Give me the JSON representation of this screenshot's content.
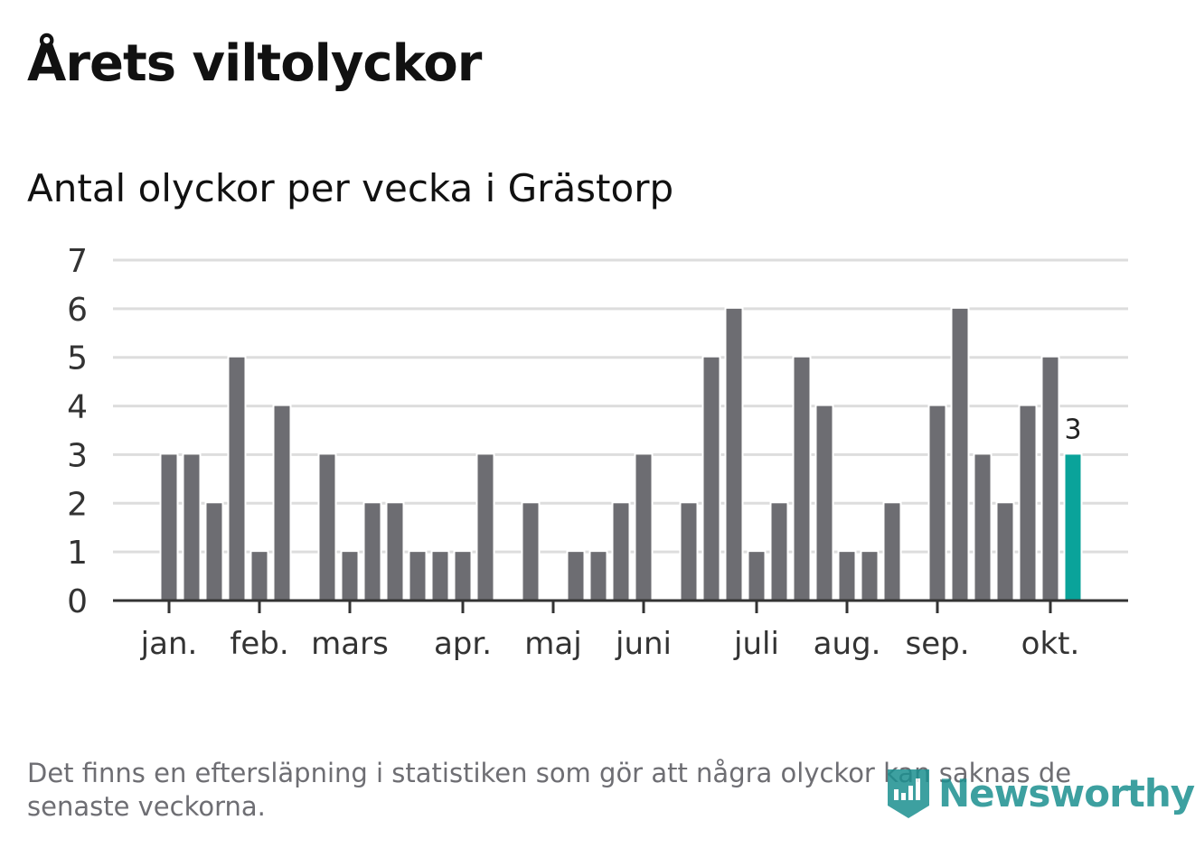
{
  "title": "Årets viltolyckor",
  "subtitle": "Antal olyckor per vecka i Grästorp",
  "note": "Det finns en eftersläpning i statistiken som gör att några olyckor kan saknas de senaste veckorna.",
  "logo": "Newsworthy",
  "colors": {
    "bar": "#6d6d72",
    "highlight": "#0aa39a",
    "grid": "#dddddd",
    "axis": "#333333"
  },
  "chart_data": {
    "type": "bar",
    "title": "Antal olyckor per vecka i Grästorp",
    "xlabel": "",
    "ylabel": "",
    "ylim": [
      0,
      7
    ],
    "yticks": [
      "0",
      "1",
      "2",
      "3",
      "4",
      "5",
      "6",
      "7"
    ],
    "grid": true,
    "values": [
      3,
      3,
      2,
      5,
      1,
      4,
      0,
      3,
      1,
      2,
      2,
      1,
      1,
      1,
      3,
      0,
      2,
      0,
      1,
      1,
      2,
      3,
      0,
      2,
      5,
      6,
      1,
      2,
      5,
      4,
      1,
      1,
      2,
      0,
      4,
      6,
      3,
      2,
      4,
      5,
      3
    ],
    "highlight_index": 40,
    "highlight_label": "3",
    "month_ticks": [
      {
        "label": "jan.",
        "week_index": 0
      },
      {
        "label": "feb.",
        "week_index": 4
      },
      {
        "label": "mars",
        "week_index": 8
      },
      {
        "label": "apr.",
        "week_index": 13
      },
      {
        "label": "maj",
        "week_index": 17
      },
      {
        "label": "juni",
        "week_index": 21
      },
      {
        "label": "juli",
        "week_index": 26
      },
      {
        "label": "aug.",
        "week_index": 30
      },
      {
        "label": "sep.",
        "week_index": 34
      },
      {
        "label": "okt.",
        "week_index": 39
      }
    ]
  }
}
